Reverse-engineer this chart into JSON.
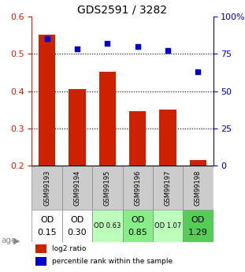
{
  "title": "GDS2591 / 3282",
  "samples": [
    "GSM99193",
    "GSM99194",
    "GSM99195",
    "GSM99196",
    "GSM99197",
    "GSM99198"
  ],
  "log2_ratio": [
    0.55,
    0.405,
    0.452,
    0.347,
    0.35,
    0.215
  ],
  "percentile_rank": [
    85,
    78,
    82,
    80,
    77,
    63
  ],
  "ylim_left": [
    0.2,
    0.6
  ],
  "ylim_right": [
    0,
    100
  ],
  "yticks_left": [
    0.2,
    0.3,
    0.4,
    0.5,
    0.6
  ],
  "yticks_right": [
    0,
    25,
    50,
    75,
    100
  ],
  "bar_color": "#cc2200",
  "dot_color": "#0000cc",
  "bar_width": 0.55,
  "od_values": [
    "0.15",
    "0.30",
    "0.63",
    "0.85",
    "1.07",
    "1.29"
  ],
  "od_large": [
    true,
    true,
    false,
    true,
    false,
    true
  ],
  "od_colors": [
    "#ffffff",
    "#ffffff",
    "#bbffbb",
    "#88ee88",
    "#bbffbb",
    "#55cc55"
  ],
  "legend_labels": [
    "log2 ratio",
    "percentile rank within the sample"
  ],
  "left_tick_color": "#cc2200",
  "right_tick_color": "#0000cc",
  "grid_color": "#000000",
  "sample_bg_color": "#cccccc",
  "title_fontsize": 10,
  "tick_fontsize": 8,
  "sample_fontsize": 6,
  "od_fontsize_large": 8,
  "od_fontsize_small": 6
}
